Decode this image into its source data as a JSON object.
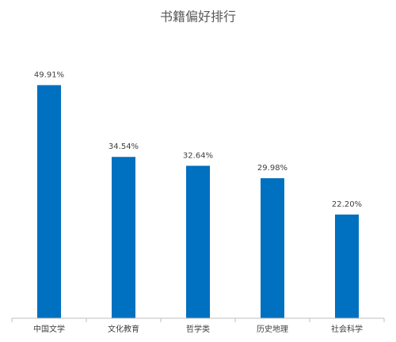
{
  "chart_data": {
    "type": "bar",
    "title": "书籍偏好排行",
    "categories": [
      "中国文学",
      "文化教育",
      "哲学类",
      "历史地理",
      "社会科学"
    ],
    "values": [
      49.91,
      34.54,
      32.64,
      29.98,
      22.2
    ],
    "value_labels": [
      "49.91%",
      "34.54%",
      "32.64%",
      "29.98%",
      "22.20%"
    ],
    "color": "#0070c0"
  }
}
